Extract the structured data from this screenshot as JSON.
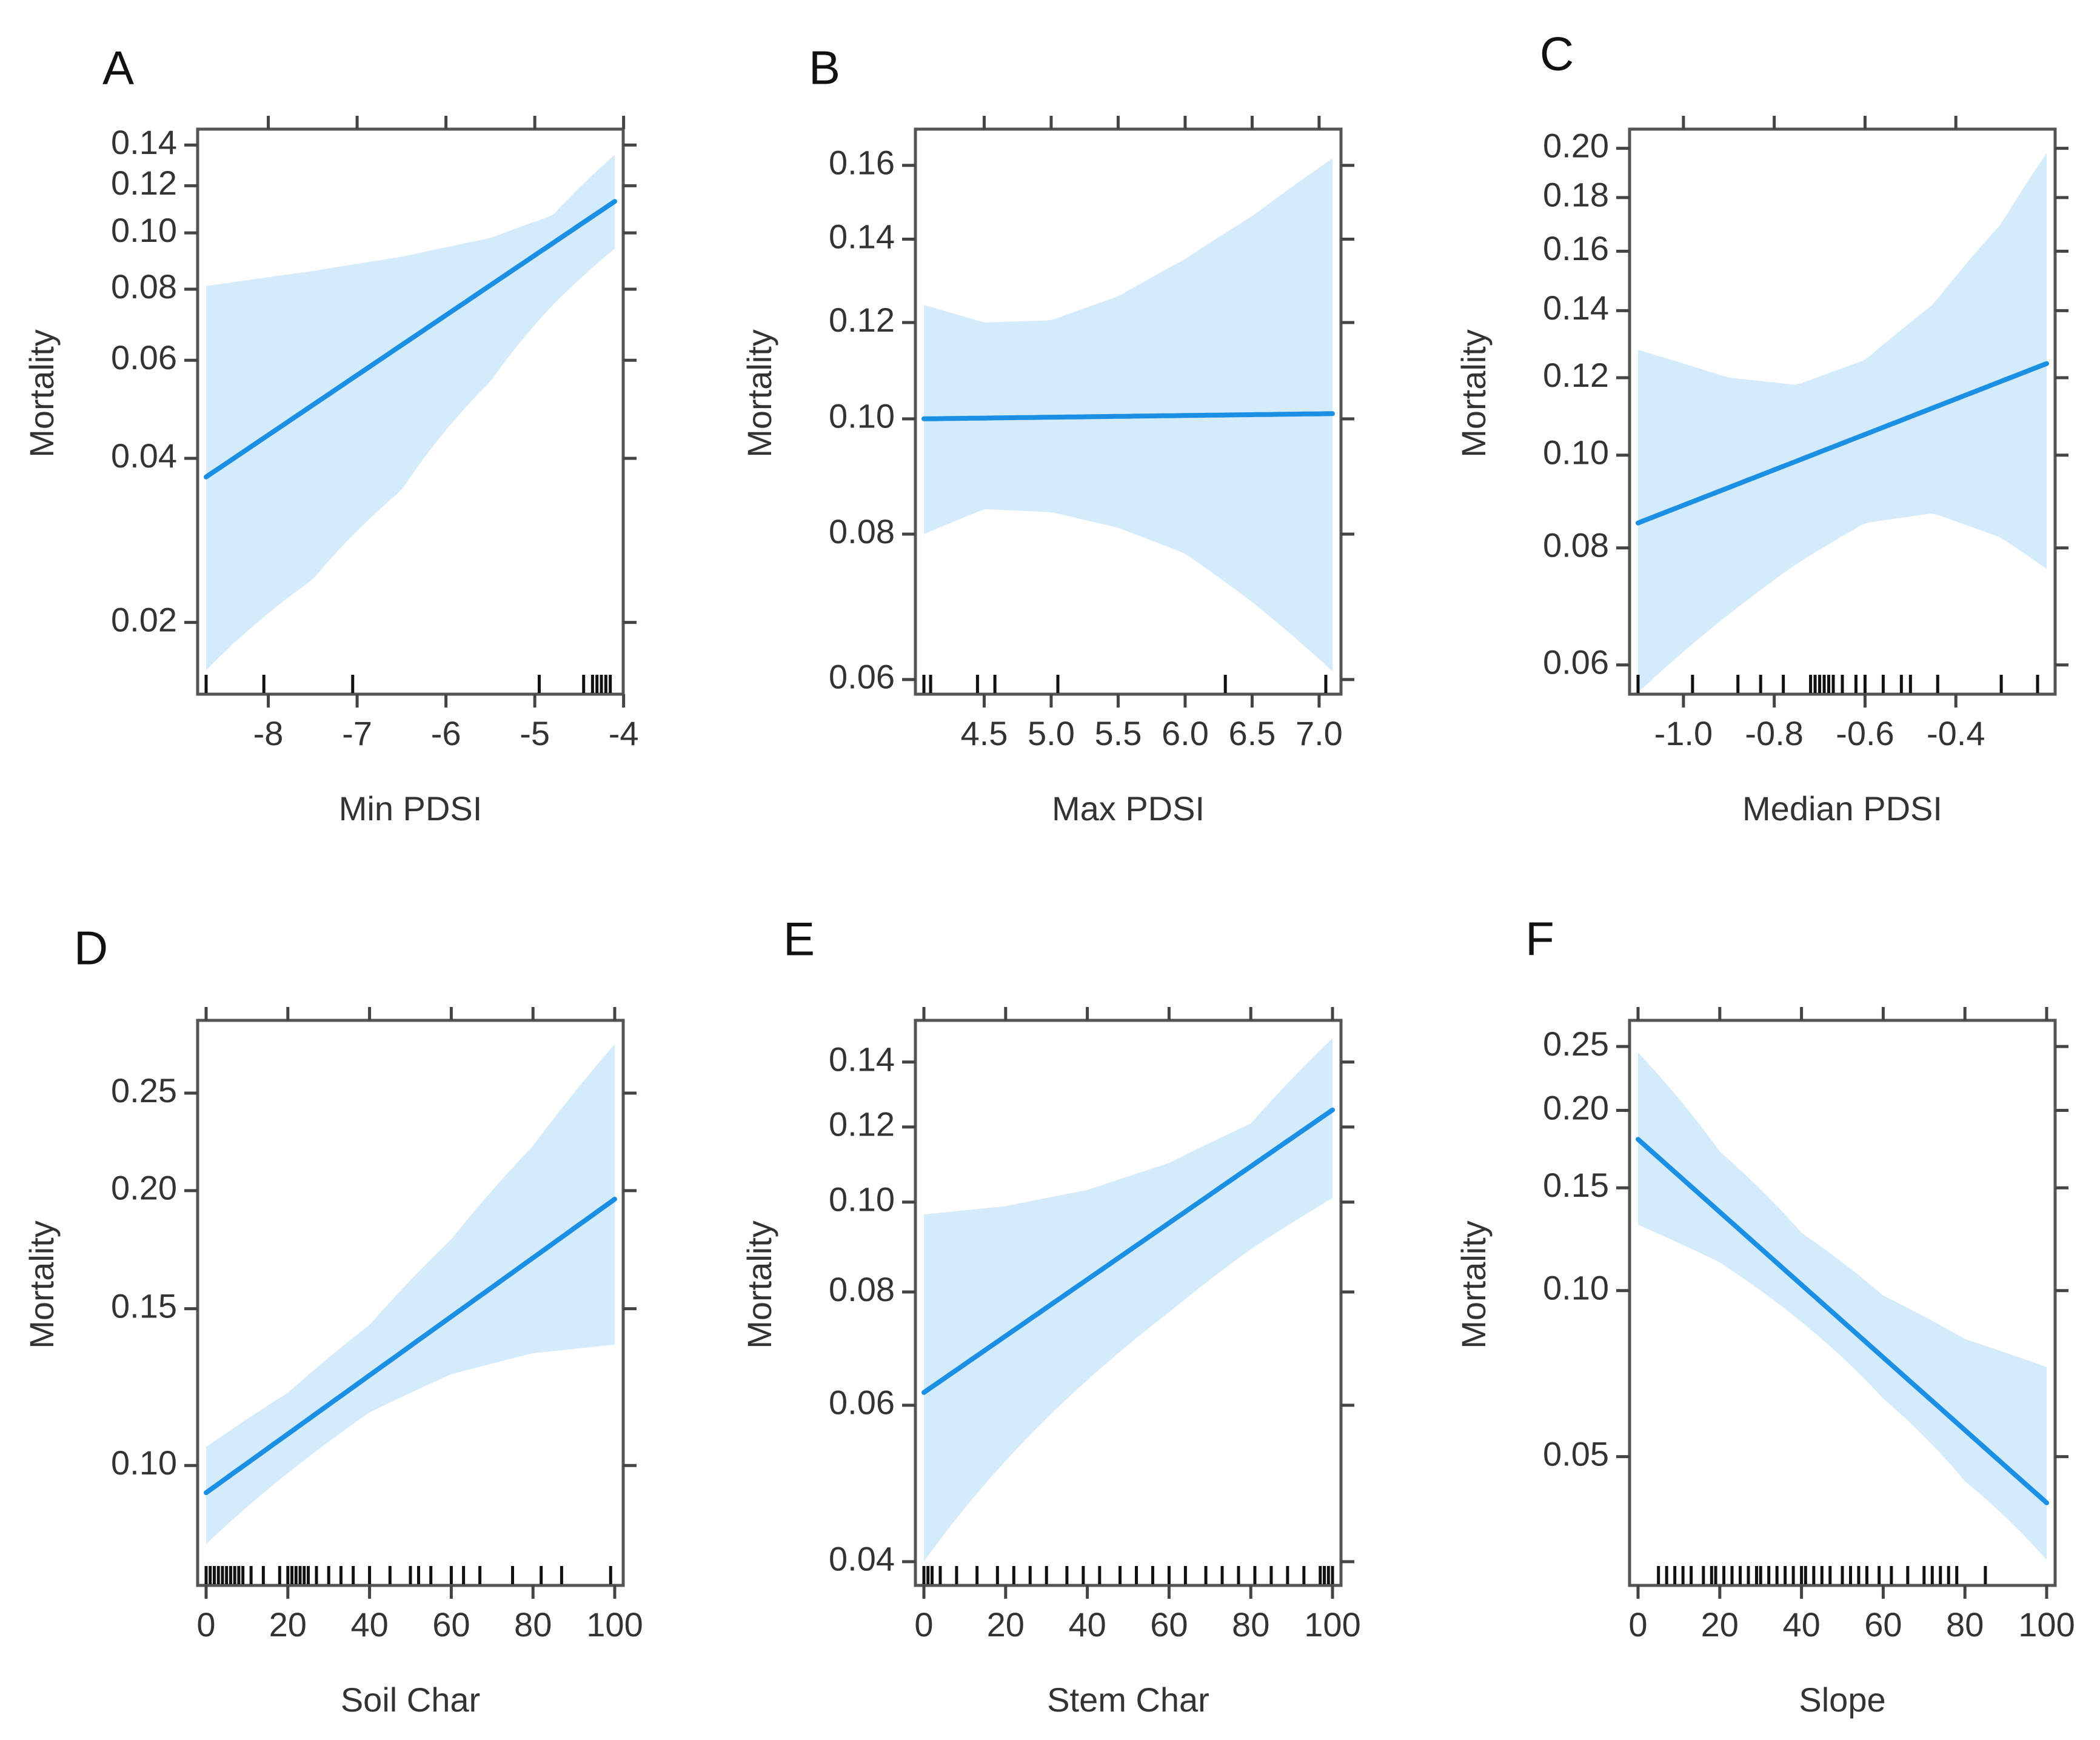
{
  "colors": {
    "line": "#1a8fe3",
    "band": "#d4ebfb",
    "frame": "#555555",
    "rug": "#111111"
  },
  "chart_data": [
    {
      "panel": "A",
      "type": "line",
      "scale": "logit",
      "xlabel": "Min PDSI",
      "ylabel": "Mortality",
      "xlim": [
        -8.7,
        -4.1
      ],
      "ylim": [
        0.0155,
        0.142
      ],
      "xticks": [
        -8,
        -7,
        -6,
        -5,
        -4
      ],
      "xtick_labels": [
        "-8",
        "-7",
        "-6",
        "-5",
        "-4"
      ],
      "yticks": [
        0.02,
        0.04,
        0.06,
        0.08,
        0.1,
        0.12,
        0.14
      ],
      "ytick_labels": [
        "0.02",
        "0.04",
        "0.06",
        "0.08",
        "0.10",
        "0.12",
        "0.14"
      ],
      "top_ticks": [
        -8,
        -7,
        -6,
        -5,
        -4
      ],
      "fit": {
        "x": [
          -8.7,
          -4.1
        ],
        "y": [
          0.037,
          0.113
        ]
      },
      "band": {
        "x": [
          -8.7,
          -7.5,
          -6.5,
          -5.5,
          -4.8,
          -4.1
        ],
        "lower": [
          0.0163,
          0.024,
          0.035,
          0.055,
          0.075,
          0.094
        ],
        "upper": [
          0.081,
          0.086,
          0.091,
          0.098,
          0.107,
          0.135
        ]
      },
      "rug": [
        -8.7,
        -8.05,
        -7.05,
        -4.95,
        -4.45,
        -4.35,
        -4.3,
        -4.25,
        -4.2,
        -4.15
      ]
    },
    {
      "panel": "B",
      "type": "line",
      "scale": "logit",
      "xlabel": "Max PDSI",
      "ylabel": "Mortality",
      "xlim": [
        4.05,
        7.1
      ],
      "ylim": [
        0.0597,
        0.167
      ],
      "xticks": [
        4.5,
        5.0,
        5.5,
        6.0,
        6.5,
        7.0
      ],
      "xtick_labels": [
        "4.5",
        "5.0",
        "5.5",
        "6.0",
        "6.5",
        "7.0"
      ],
      "yticks": [
        0.06,
        0.08,
        0.1,
        0.12,
        0.14,
        0.16
      ],
      "ytick_labels": [
        "0.06",
        "0.08",
        "0.10",
        "0.12",
        "0.14",
        "0.16"
      ],
      "top_ticks": [
        4.5,
        5.0,
        5.5,
        6.0,
        6.5,
        7.0
      ],
      "fit": {
        "x": [
          4.05,
          7.1
        ],
        "y": [
          0.1,
          0.101
        ]
      },
      "band": {
        "x": [
          4.05,
          4.5,
          5.0,
          5.5,
          6.0,
          6.5,
          7.1
        ],
        "lower": [
          0.08,
          0.084,
          0.0835,
          0.081,
          0.077,
          0.07,
          0.061
        ],
        "upper": [
          0.124,
          0.12,
          0.1205,
          0.126,
          0.135,
          0.146,
          0.162
        ]
      },
      "rug": [
        4.05,
        4.1,
        4.45,
        4.58,
        5.05,
        6.3,
        7.05
      ]
    },
    {
      "panel": "C",
      "type": "line",
      "scale": "logit",
      "xlabel": "Median PDSI",
      "ylabel": "Mortality",
      "xlim": [
        -1.1,
        -0.2
      ],
      "ylim": [
        0.0575,
        0.203
      ],
      "xticks": [
        -1.0,
        -0.8,
        -0.6,
        -0.4
      ],
      "xtick_labels": [
        "-1.0",
        "-0.8",
        "-0.6",
        "-0.4"
      ],
      "yticks": [
        0.06,
        0.08,
        0.1,
        0.12,
        0.14,
        0.16,
        0.18,
        0.2
      ],
      "ytick_labels": [
        "0.06",
        "0.08",
        "0.10",
        "0.12",
        "0.14",
        "0.16",
        "0.18",
        "0.20"
      ],
      "top_ticks": [
        -1.0,
        -0.8,
        -0.6,
        -0.4
      ],
      "fit": {
        "x": [
          -1.1,
          -0.2
        ],
        "y": [
          0.085,
          0.124
        ]
      },
      "band": {
        "x": [
          -1.1,
          -0.9,
          -0.75,
          -0.6,
          -0.45,
          -0.3,
          -0.2
        ],
        "lower": [
          0.056,
          0.068,
          0.077,
          0.085,
          0.087,
          0.082,
          0.076
        ],
        "upper": [
          0.128,
          0.12,
          0.118,
          0.125,
          0.142,
          0.17,
          0.198
        ]
      },
      "rug": [
        -1.1,
        -0.98,
        -0.88,
        -0.83,
        -0.78,
        -0.72,
        -0.71,
        -0.7,
        -0.69,
        -0.68,
        -0.67,
        -0.65,
        -0.62,
        -0.6,
        -0.56,
        -0.52,
        -0.5,
        -0.44,
        -0.3,
        -0.22
      ]
    },
    {
      "panel": "D",
      "type": "line",
      "scale": "logit",
      "xlabel": "Soil Char",
      "ylabel": "Mortality",
      "xlim": [
        0,
        100
      ],
      "ylim": [
        0.0748,
        0.285
      ],
      "xticks": [
        0,
        20,
        40,
        60,
        80,
        100
      ],
      "xtick_labels": [
        "0",
        "20",
        "40",
        "60",
        "80",
        "100"
      ],
      "yticks": [
        0.1,
        0.15,
        0.2,
        0.25
      ],
      "ytick_labels": [
        "0.10",
        "0.15",
        "0.20",
        "0.25"
      ],
      "top_ticks": [
        0,
        20,
        40,
        60,
        80,
        100
      ],
      "fit": {
        "x": [
          0,
          100
        ],
        "y": [
          0.093,
          0.196
        ]
      },
      "band": {
        "x": [
          0,
          20,
          40,
          60,
          80,
          100
        ],
        "lower": [
          0.081,
          0.098,
          0.115,
          0.127,
          0.134,
          0.137
        ],
        "upper": [
          0.105,
          0.121,
          0.144,
          0.178,
          0.222,
          0.278
        ]
      },
      "rug": [
        0,
        1,
        2,
        3,
        4,
        5,
        6,
        7,
        8,
        9,
        11,
        14,
        18,
        20,
        21,
        22,
        23,
        24,
        25,
        27,
        30,
        33,
        36,
        40,
        45,
        50,
        52,
        55,
        60,
        63,
        67,
        75,
        82,
        87,
        99
      ]
    },
    {
      "panel": "E",
      "type": "line",
      "scale": "logit",
      "xlabel": "Stem Char",
      "ylabel": "Mortality",
      "xlim": [
        0,
        100
      ],
      "ylim": [
        0.0388,
        0.15
      ],
      "xticks": [
        0,
        20,
        40,
        60,
        80,
        100
      ],
      "xtick_labels": [
        "0",
        "20",
        "40",
        "60",
        "80",
        "100"
      ],
      "yticks": [
        0.04,
        0.06,
        0.08,
        0.1,
        0.12,
        0.14
      ],
      "ytick_labels": [
        "0.04",
        "0.06",
        "0.08",
        "0.10",
        "0.12",
        "0.14"
      ],
      "top_ticks": [
        0,
        20,
        40,
        60,
        80,
        100
      ],
      "fit": {
        "x": [
          0,
          100
        ],
        "y": [
          0.062,
          0.125
        ]
      },
      "band": {
        "x": [
          0,
          20,
          40,
          60,
          80,
          100
        ],
        "lower": [
          0.04,
          0.052,
          0.064,
          0.076,
          0.089,
          0.101
        ],
        "upper": [
          0.097,
          0.099,
          0.103,
          0.11,
          0.121,
          0.148
        ]
      },
      "rug": [
        0,
        1,
        2,
        4,
        8,
        13,
        18,
        22,
        26,
        30,
        35,
        39,
        43,
        48,
        52,
        56,
        60,
        64,
        69,
        73,
        77,
        81,
        85,
        89,
        93,
        97,
        98,
        99,
        100
      ]
    },
    {
      "panel": "F",
      "type": "line",
      "scale": "logit",
      "xlabel": "Slope",
      "ylabel": "Mortality",
      "xlim": [
        0,
        100
      ],
      "ylim": [
        0.0302,
        0.262
      ],
      "xticks": [
        0,
        20,
        40,
        60,
        80,
        100
      ],
      "xtick_labels": [
        "0",
        "20",
        "40",
        "60",
        "80",
        "100"
      ],
      "yticks": [
        0.05,
        0.1,
        0.15,
        0.2,
        0.25
      ],
      "ytick_labels": [
        "0.05",
        "0.10",
        "0.15",
        "0.20",
        "0.25"
      ],
      "top_ticks": [
        0,
        20,
        40,
        60,
        80,
        100
      ],
      "fit": {
        "x": [
          0,
          100
        ],
        "y": [
          0.18,
          0.041
        ]
      },
      "band": {
        "x": [
          0,
          20,
          40,
          60,
          80,
          100
        ],
        "lower": [
          0.13,
          0.112,
          0.088,
          0.064,
          0.045,
          0.032
        ],
        "upper": [
          0.245,
          0.172,
          0.126,
          0.098,
          0.082,
          0.073
        ]
      },
      "rug": [
        5,
        7,
        9,
        11,
        13,
        16,
        18,
        19,
        21,
        23,
        25,
        27,
        29,
        30,
        32,
        34,
        36,
        38,
        40,
        41,
        43,
        45,
        47,
        50,
        52,
        54,
        56,
        59,
        62,
        66,
        70,
        72,
        74,
        76,
        78,
        85
      ]
    }
  ]
}
